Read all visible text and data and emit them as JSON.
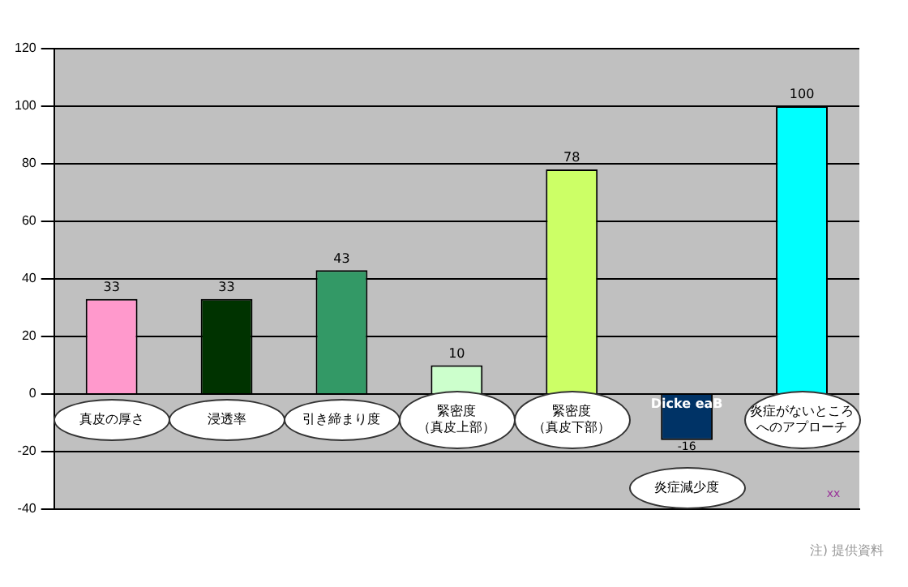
{
  "chart_data": {
    "type": "bar",
    "categories": [
      "真皮の厚さ",
      "浸透率",
      "引き締まり度",
      "緊密度（真皮上部）",
      "緊密度（真皮下部）",
      "炎症減少度",
      "炎症がないところへのアプローチ"
    ],
    "values": [
      33,
      33,
      43,
      10,
      78,
      -16,
      100
    ],
    "colors": [
      "#ff99cc",
      "#003300",
      "#339966",
      "#ccffcc",
      "#ccff66",
      "#003366",
      "#00ffff"
    ],
    "ylim": [
      -40,
      120
    ],
    "yticks": [
      -40,
      -20,
      0,
      20,
      40,
      60,
      80,
      100,
      120
    ],
    "grid": "y",
    "data_labels": true,
    "legend": false,
    "annotations": [
      {
        "text": "Dicke eaB",
        "x": "炎症減少度",
        "y": -1.5
      },
      "xx",
      "注) 提供資料"
    ]
  }
}
